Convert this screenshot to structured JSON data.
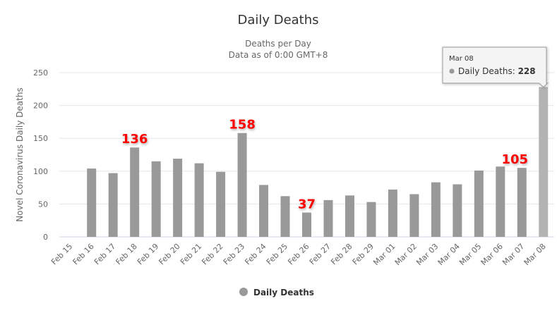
{
  "chart_data": {
    "type": "bar",
    "title": "Daily Deaths",
    "subtitle": [
      "Deaths per Day",
      "Data as of 0:00 GMT+8"
    ],
    "ylabel": "Novel Coronavirus Daily Deaths",
    "xlabel": "",
    "ylim": [
      0,
      250
    ],
    "yticks": [
      0,
      50,
      100,
      150,
      200,
      250
    ],
    "grid": true,
    "categories": [
      "Feb 15",
      "Feb 16",
      "Feb 17",
      "Feb 18",
      "Feb 19",
      "Feb 20",
      "Feb 21",
      "Feb 22",
      "Feb 23",
      "Feb 24",
      "Feb 25",
      "Feb 26",
      "Feb 27",
      "Feb 28",
      "Feb 29",
      "Mar 01",
      "Mar 02",
      "Mar 03",
      "Mar 04",
      "Mar 05",
      "Mar 06",
      "Mar 07",
      "Mar 08"
    ],
    "series": [
      {
        "name": "Daily Deaths",
        "color": "#999999",
        "values": [
          0,
          104,
          97,
          136,
          115,
          119,
          112,
          99,
          158,
          79,
          62,
          37,
          56,
          63,
          53,
          72,
          65,
          83,
          80,
          101,
          107,
          105,
          228
        ]
      }
    ],
    "annotations": [
      {
        "category": "Feb 18",
        "text": "136"
      },
      {
        "category": "Feb 23",
        "text": "158"
      },
      {
        "category": "Feb 26",
        "text": "37"
      },
      {
        "category": "Mar 07",
        "text": "105"
      }
    ],
    "annotation_color": "#ff0000",
    "legend": {
      "position": "bottom-center",
      "label": "Daily Deaths"
    },
    "tooltip": {
      "category": "Mar 08",
      "series": "Daily Deaths",
      "separator": ":",
      "value": "228"
    },
    "highlight_color": "#b3b3b3"
  }
}
